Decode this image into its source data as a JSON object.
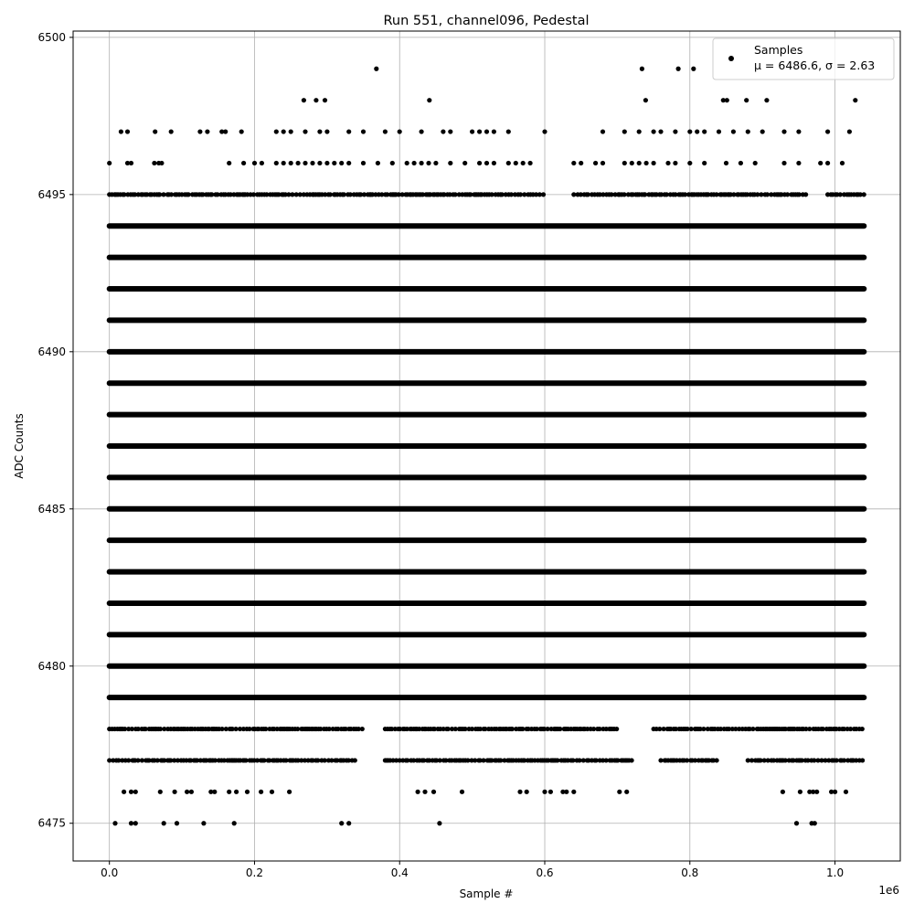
{
  "chart_data": {
    "type": "scatter",
    "title": "Run 551, channel096, Pedestal",
    "xlabel": "Sample #",
    "ylabel": "ADC Counts",
    "x_offset_label": "1e6",
    "xlim": [
      -0.05,
      1.09
    ],
    "ylim": [
      6473.8,
      6500.2
    ],
    "x_ticks": [
      0.0,
      0.2,
      0.4,
      0.6,
      0.8,
      1.0
    ],
    "x_tick_labels": [
      "0.0",
      "0.2",
      "0.4",
      "0.6",
      "0.8",
      "1.0"
    ],
    "y_ticks": [
      6475,
      6480,
      6485,
      6490,
      6495,
      6500
    ],
    "y_tick_labels": [
      "6475",
      "6480",
      "6485",
      "6490",
      "6495",
      "6500"
    ],
    "grid": true,
    "legend_position": "top-right",
    "series": [
      {
        "name": "Samples",
        "stats_label": "μ = 6486.6, σ = 2.63",
        "color": "#000000",
        "marker": "circle",
        "x_range": [
          0.0,
          1.04
        ],
        "dense_levels": [
          6479,
          6480,
          6481,
          6482,
          6483,
          6484,
          6485,
          6486,
          6487,
          6488,
          6489,
          6490,
          6491,
          6492,
          6493,
          6494
        ],
        "medium_levels": [
          {
            "y": 6495,
            "segments": [
              [
                0.0,
                0.6
              ],
              [
                0.64,
                0.96
              ],
              [
                0.99,
                1.04
              ]
            ]
          },
          {
            "y": 6478,
            "segments": [
              [
                0.0,
                0.2
              ],
              [
                0.2,
                0.35
              ],
              [
                0.38,
                0.7
              ],
              [
                0.75,
                1.04
              ]
            ]
          },
          {
            "y": 6477,
            "segments": [
              [
                0.0,
                0.34
              ],
              [
                0.38,
                0.72
              ],
              [
                0.76,
                0.84
              ],
              [
                0.88,
                1.04
              ]
            ]
          }
        ],
        "sparse_points": [
          {
            "y": 6499,
            "x": [
              0.368,
              0.734,
              0.784,
              0.805
            ]
          },
          {
            "y": 6498,
            "x": [
              0.268,
              0.285,
              0.297,
              0.441,
              0.739,
              0.846,
              0.851,
              0.878,
              0.906,
              1.028
            ]
          },
          {
            "y": 6497,
            "x": [
              0.016,
              0.025,
              0.063,
              0.085,
              0.125,
              0.135,
              0.155,
              0.16,
              0.182,
              0.23,
              0.24,
              0.25,
              0.27,
              0.29,
              0.3,
              0.33,
              0.35,
              0.38,
              0.4,
              0.43,
              0.46,
              0.47,
              0.5,
              0.51,
              0.52,
              0.53,
              0.55,
              0.6,
              0.68,
              0.71,
              0.73,
              0.75,
              0.76,
              0.78,
              0.8,
              0.81,
              0.82,
              0.84,
              0.86,
              0.88,
              0.9,
              0.93,
              0.95,
              0.99,
              1.02
            ]
          },
          {
            "y": 6496,
            "x": [
              0.0,
              0.025,
              0.03,
              0.062,
              0.068,
              0.072,
              0.165,
              0.185,
              0.2,
              0.21,
              0.23,
              0.24,
              0.25,
              0.26,
              0.27,
              0.28,
              0.29,
              0.3,
              0.31,
              0.32,
              0.33,
              0.35,
              0.37,
              0.39,
              0.41,
              0.42,
              0.43,
              0.44,
              0.45,
              0.47,
              0.49,
              0.51,
              0.52,
              0.53,
              0.55,
              0.56,
              0.57,
              0.58,
              0.64,
              0.65,
              0.67,
              0.68,
              0.71,
              0.72,
              0.73,
              0.74,
              0.75,
              0.77,
              0.78,
              0.8,
              0.82,
              0.85,
              0.87,
              0.89,
              0.93,
              0.95,
              0.98,
              0.99,
              1.01
            ]
          },
          {
            "y": 6476,
            "x": [
              0.02,
              0.03,
              0.036,
              0.07,
              0.09,
              0.107,
              0.113,
              0.14,
              0.145,
              0.165,
              0.175,
              0.19,
              0.209,
              0.224,
              0.248,
              0.425,
              0.435,
              0.447,
              0.486,
              0.566,
              0.575,
              0.6,
              0.608,
              0.625,
              0.63,
              0.64,
              0.703,
              0.713,
              0.928,
              0.952,
              0.965,
              0.97,
              0.975,
              0.995,
              1.0,
              1.015
            ]
          },
          {
            "y": 6475,
            "x": [
              0.008,
              0.03,
              0.036,
              0.075,
              0.093,
              0.13,
              0.172,
              0.32,
              0.33,
              0.455,
              0.947,
              0.968,
              0.972
            ]
          }
        ]
      }
    ]
  }
}
